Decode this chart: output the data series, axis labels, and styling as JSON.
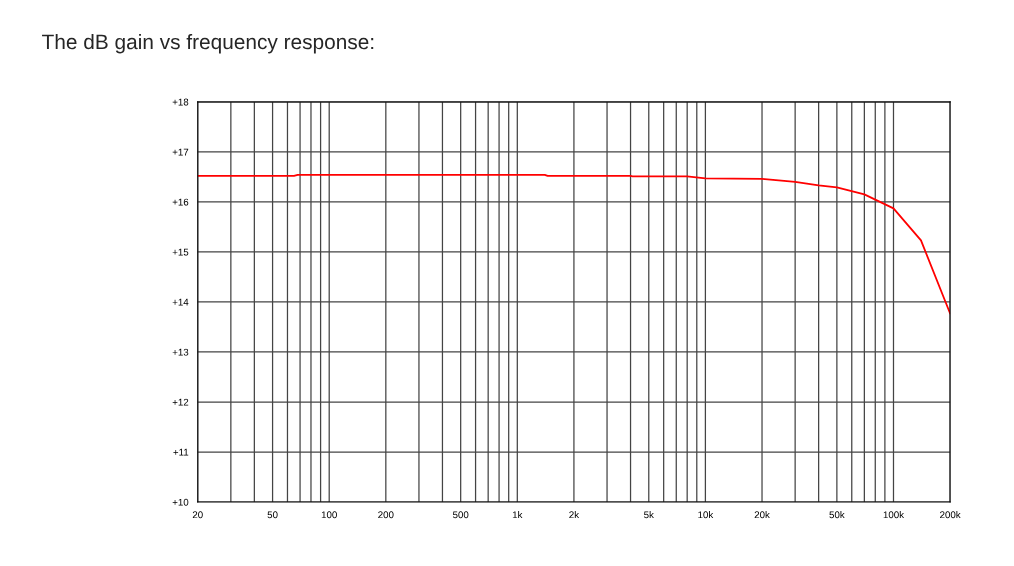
{
  "chart_data": {
    "type": "line",
    "title": "The dB gain vs frequency response:",
    "series": [
      {
        "color": "#ff0000",
        "x": [
          20,
          65,
          68,
          1400,
          1450,
          4000,
          4100,
          8000,
          10000,
          20000,
          30000,
          40000,
          50000,
          70000,
          100000,
          140000,
          200000
        ],
        "values": [
          16.52,
          16.52,
          16.54,
          16.54,
          16.52,
          16.52,
          16.51,
          16.51,
          16.47,
          16.46,
          16.4,
          16.33,
          16.29,
          16.15,
          15.87,
          15.23,
          13.77
        ]
      }
    ],
    "log": "x",
    "xlim": [
      20,
      200000
    ],
    "xticks": [
      20,
      {
        "value": 30,
        "label": null
      },
      {
        "value": 40,
        "label": null
      },
      50,
      {
        "value": 60,
        "label": null
      },
      {
        "value": 70,
        "label": null
      },
      {
        "value": 80,
        "label": null
      },
      {
        "value": 90,
        "label": null
      },
      100,
      200,
      {
        "value": 300,
        "label": null
      },
      {
        "value": 400,
        "label": null
      },
      500,
      {
        "value": 600,
        "label": null
      },
      {
        "value": 700,
        "label": null
      },
      {
        "value": 800,
        "label": null
      },
      {
        "value": 900,
        "label": null
      },
      {
        "value": 1000,
        "label": "1k"
      },
      {
        "value": 2000,
        "label": "2k"
      },
      {
        "value": 3000,
        "label": null
      },
      {
        "value": 4000,
        "label": null
      },
      {
        "value": 5000,
        "label": "5k"
      },
      {
        "value": 6000,
        "label": null
      },
      {
        "value": 7000,
        "label": null
      },
      {
        "value": 8000,
        "label": null
      },
      {
        "value": 9000,
        "label": null
      },
      {
        "value": 10000,
        "label": "10k"
      },
      {
        "value": 20000,
        "label": "20k"
      },
      {
        "value": 30000,
        "label": null
      },
      {
        "value": 40000,
        "label": null
      },
      {
        "value": 50000,
        "label": "50k"
      },
      {
        "value": 60000,
        "label": null
      },
      {
        "value": 70000,
        "label": null
      },
      {
        "value": 80000,
        "label": null
      },
      {
        "value": 90000,
        "label": null
      },
      {
        "value": 100000,
        "label": "100k"
      },
      {
        "value": 200000,
        "label": "200k"
      }
    ],
    "ylim": [
      10,
      18
    ],
    "yticks": [
      {
        "value": 10,
        "label": "+10"
      },
      {
        "value": 11,
        "label": "+11"
      },
      {
        "value": 12,
        "label": "+12"
      },
      {
        "value": 13,
        "label": "+13"
      },
      {
        "value": 14,
        "label": "+14"
      },
      {
        "value": 15,
        "label": "+15"
      },
      {
        "value": 16,
        "label": "+16"
      },
      {
        "value": 17,
        "label": "+17"
      },
      {
        "value": 18,
        "label": "+18"
      }
    ],
    "grid": true,
    "legend": false,
    "marker": "none",
    "line_style": "solid"
  }
}
